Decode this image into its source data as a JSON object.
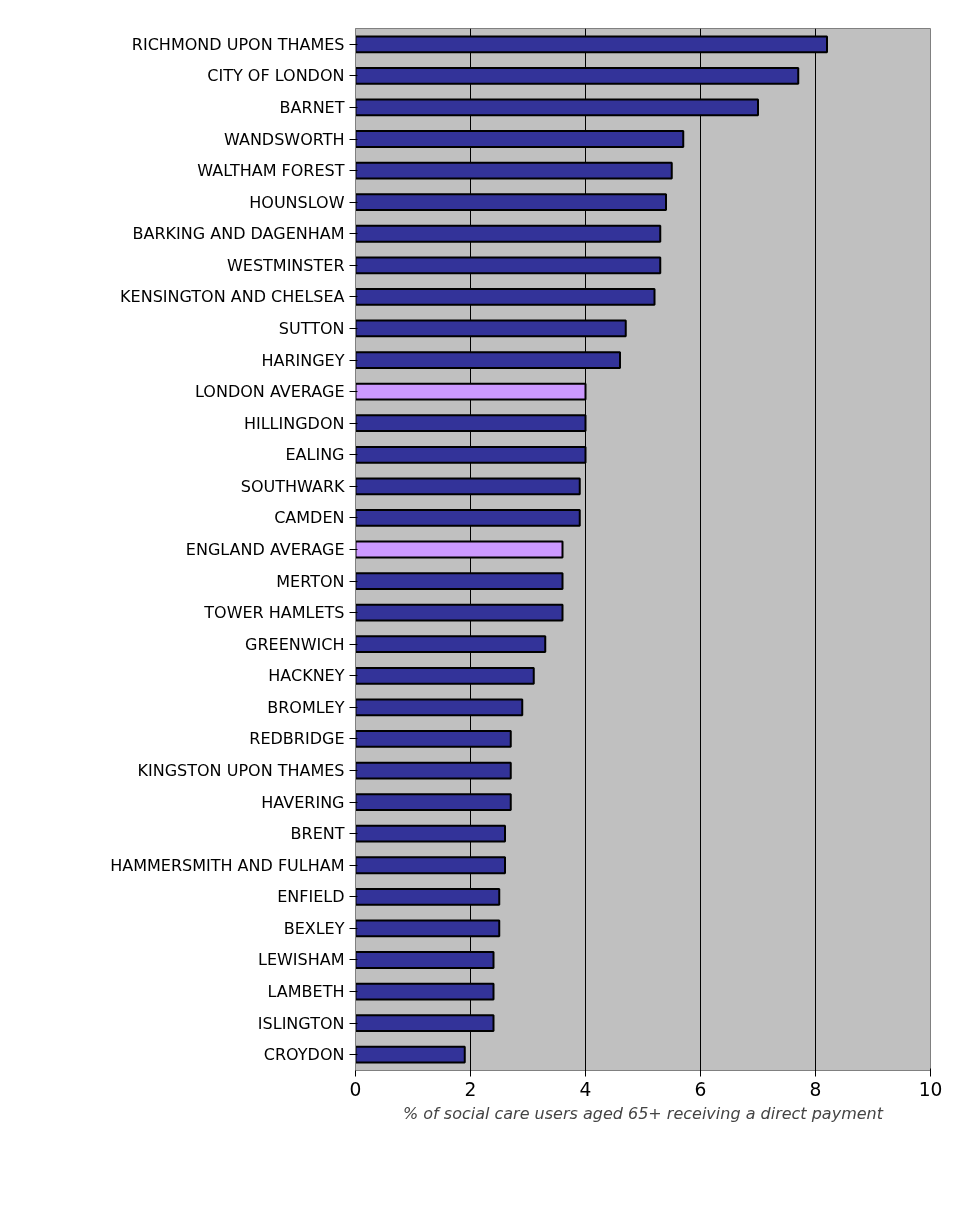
{
  "chart_data": {
    "type": "bar",
    "orientation": "horizontal",
    "xlabel": "% of social care users aged 65+ receiving a direct payment",
    "categories": [
      "RICHMOND UPON THAMES",
      "CITY OF LONDON",
      "BARNET",
      "WANDSWORTH",
      "WALTHAM FOREST",
      "HOUNSLOW",
      "BARKING AND DAGENHAM",
      "WESTMINSTER",
      "KENSINGTON AND CHELSEA",
      "SUTTON",
      "HARINGEY",
      "LONDON AVERAGE",
      "HILLINGDON",
      "EALING",
      "SOUTHWARK",
      "CAMDEN",
      "ENGLAND AVERAGE",
      "MERTON",
      "TOWER HAMLETS",
      "GREENWICH",
      "HACKNEY",
      "BROMLEY",
      "REDBRIDGE",
      "KINGSTON UPON THAMES",
      "HAVERING",
      "BRENT",
      "HAMMERSMITH AND FULHAM",
      "ENFIELD",
      "BEXLEY",
      "LEWISHAM",
      "LAMBETH",
      "ISLINGTON",
      "CROYDON"
    ],
    "values": [
      8.2,
      7.7,
      7.0,
      5.7,
      5.5,
      5.4,
      5.3,
      5.3,
      5.2,
      4.7,
      4.6,
      4.0,
      4.0,
      4.0,
      3.9,
      3.9,
      3.6,
      3.6,
      3.6,
      3.3,
      3.1,
      2.9,
      2.7,
      2.7,
      2.7,
      2.6,
      2.6,
      2.5,
      2.5,
      2.4,
      2.4,
      2.4,
      1.9
    ],
    "colors": [
      "#333399",
      "#333399",
      "#333399",
      "#333399",
      "#333399",
      "#333399",
      "#333399",
      "#333399",
      "#333399",
      "#333399",
      "#333399",
      "#cc99ff",
      "#333399",
      "#333399",
      "#333399",
      "#333399",
      "#cc99ff",
      "#333399",
      "#333399",
      "#333399",
      "#333399",
      "#333399",
      "#333399",
      "#333399",
      "#333399",
      "#333399",
      "#333399",
      "#333399",
      "#333399",
      "#333399",
      "#333399",
      "#333399",
      "#333399"
    ],
    "xlim": [
      0,
      10
    ],
    "xticks": [
      0,
      2,
      4,
      6,
      8,
      10
    ],
    "grid": "x"
  }
}
